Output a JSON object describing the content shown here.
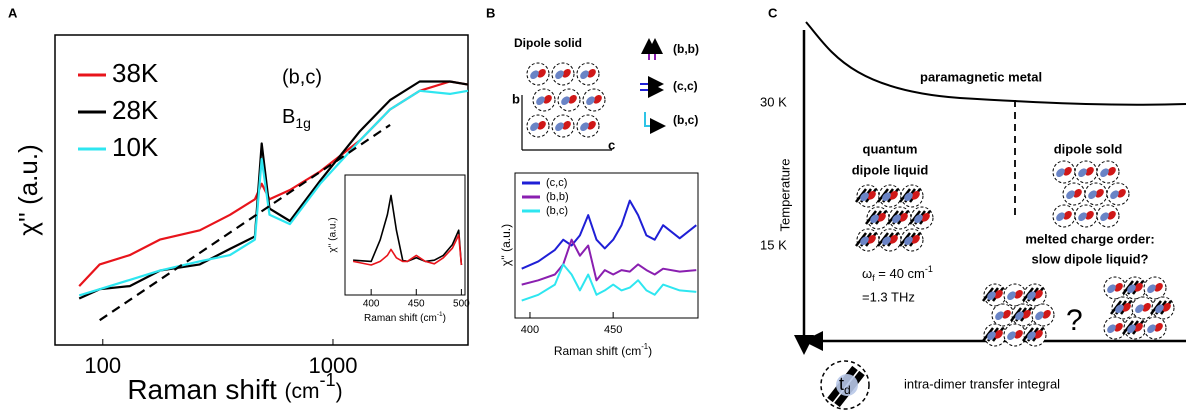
{
  "chart_data": [
    {
      "type": "line",
      "log_x": true,
      "xlim": [
        62,
        3860
      ],
      "ylim": [
        0,
        100
      ],
      "xticks": [
        100,
        1000
      ],
      "x": [
        79,
        97,
        131,
        177,
        264,
        357,
        458,
        490,
        530,
        650,
        880,
        1310,
        1770,
        2380,
        3220,
        3860
      ],
      "series": [
        {
          "name": "38K",
          "color": "#e8141b",
          "values": [
            19,
            26,
            29,
            34,
            37,
            42,
            47,
            52,
            47,
            50,
            56,
            66,
            76,
            82,
            85,
            84
          ]
        },
        {
          "name": "28K",
          "color": "#000000",
          "values": [
            15,
            18,
            19,
            24,
            26,
            31,
            35,
            65,
            44,
            40,
            53,
            69,
            79,
            85,
            85,
            84
          ]
        },
        {
          "name": "10K",
          "color": "#2ee6f0",
          "values": [
            16,
            18,
            21,
            24,
            27,
            29,
            34,
            60,
            42,
            39,
            52,
            66,
            76,
            82,
            81,
            82
          ]
        },
        {
          "color": "#000000",
          "dashed": true,
          "x": [
            97,
            1770
          ],
          "values": [
            8,
            71
          ]
        }
      ],
      "annotations": [
        "(b,c)"
      ],
      "symmetry": [
        "B",
        "1g"
      ],
      "x_label": [
        "Raman shift ",
        "(cm",
        "-1",
        ")"
      ],
      "y_label": "χ'' (a.u.)"
    },
    {
      "type": "line",
      "xlim": [
        371,
        504
      ],
      "ylim": [
        0,
        100
      ],
      "xticks": [
        400,
        450,
        500
      ],
      "x": [
        380,
        400,
        410,
        418,
        422,
        428,
        435,
        440,
        450,
        460,
        470,
        480,
        490,
        497,
        500
      ],
      "series": [
        {
          "color": "#000000",
          "values": [
            29,
            28,
            46,
            67,
            83,
            54,
            29,
            28,
            31,
            28,
            29,
            33,
            42,
            54,
            25
          ]
        },
        {
          "color": "#e8141b",
          "values": [
            28,
            25,
            28,
            33,
            38,
            31,
            28,
            28,
            33,
            28,
            26,
            31,
            39,
            50,
            25
          ]
        }
      ],
      "x_label": [
        "Raman shift (cm",
        "-1",
        ")"
      ],
      "y_label": "χ'' (a.u.)"
    },
    {
      "type": "line",
      "xlim": [
        391,
        501
      ],
      "ylim": [
        0,
        100
      ],
      "xticks": [
        400,
        450
      ],
      "x": [
        395,
        405,
        415,
        420,
        425,
        430,
        435,
        440,
        445,
        450,
        455,
        460,
        465,
        470,
        475,
        480,
        490,
        500
      ],
      "series": [
        {
          "name": "(c,c)",
          "color": "#1f1fd6",
          "values": [
            34,
            39,
            47,
            54,
            50,
            57,
            71,
            54,
            48,
            54,
            64,
            81,
            71,
            57,
            54,
            64,
            55,
            64
          ]
        },
        {
          "name": "(b,b)",
          "color": "#8a1fb0",
          "values": [
            23,
            26,
            30,
            37,
            54,
            43,
            50,
            26,
            33,
            30,
            33,
            32,
            37,
            33,
            30,
            34,
            32,
            33
          ]
        },
        {
          "name": "(b,c)",
          "color": "#2ee6f0",
          "values": [
            12,
            16,
            23,
            37,
            30,
            19,
            30,
            16,
            19,
            23,
            19,
            21,
            26,
            19,
            16,
            23,
            19,
            18
          ]
        }
      ],
      "x_label": [
        "Raman shift (cm",
        "-1",
        ")"
      ],
      "y_label": "χ'' (a.u.)"
    }
  ],
  "panel_labels": [
    "A",
    "B",
    "C"
  ],
  "panel_b_diagram": {
    "title": "Dipole solid",
    "axis_b": "b",
    "axis_c": "c",
    "polarizations": [
      {
        "label": "(b,b)",
        "color": "#8a1fb0"
      },
      {
        "label": "(c,c)",
        "color": "#1f1fd6"
      },
      {
        "label": "(b,c)",
        "color": "#2ec4e6"
      }
    ]
  },
  "panel_c": {
    "region_top": "paramagnetic metal",
    "t_high": "30 K",
    "t_low": "15 K",
    "y_axis": "Temperature",
    "liquid": [
      "quantum",
      "dipole liquid"
    ],
    "solid": "dipole sold",
    "melted": [
      "melted charge order:",
      "slow dipole liquid?"
    ],
    "frequency": [
      "ω",
      "f",
      " = 40 cm",
      "-1"
    ],
    "thz": "=1.3 THz",
    "question": "?",
    "x_axis": "intra-dimer transfer integral",
    "td": [
      "t",
      "d"
    ]
  }
}
